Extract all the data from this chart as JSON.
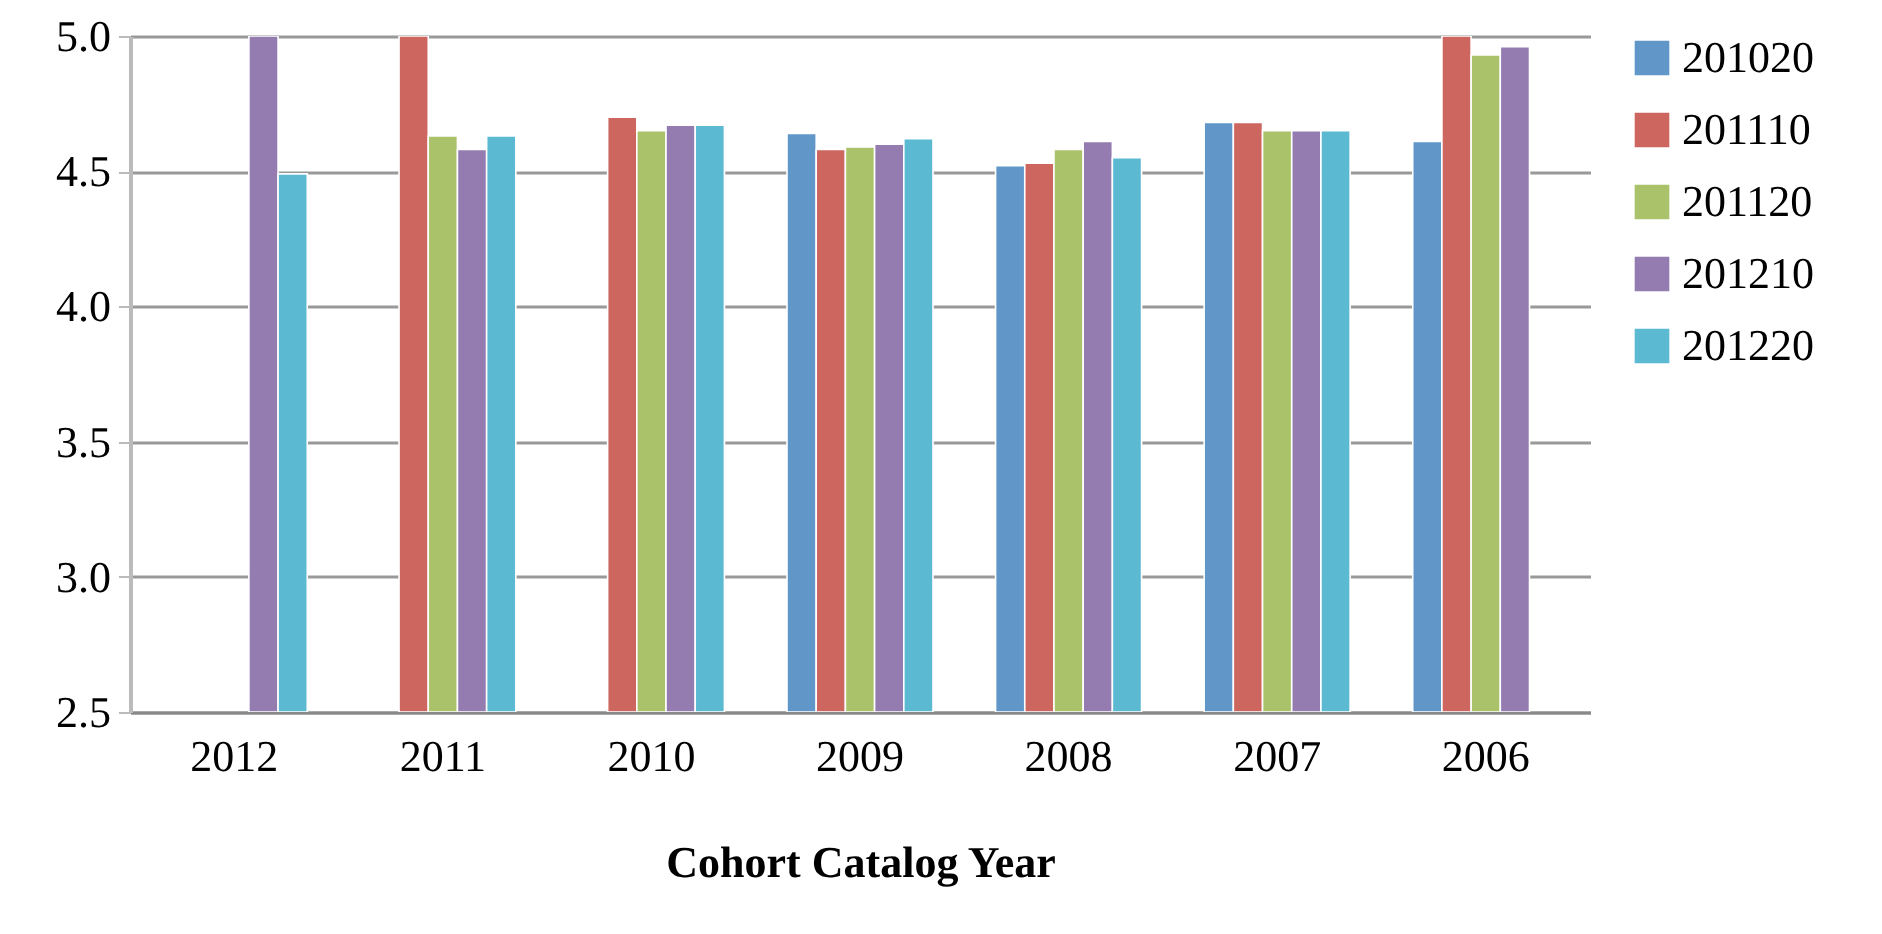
{
  "chart_data": {
    "type": "bar",
    "xlabel": "Cohort Catalog Year",
    "categories": [
      "2012",
      "2011",
      "2010",
      "2009",
      "2008",
      "2007",
      "2006"
    ],
    "series": [
      {
        "name": "201020",
        "color": "#6096c8",
        "values": [
          null,
          null,
          null,
          4.64,
          4.52,
          4.68,
          4.61
        ]
      },
      {
        "name": "201110",
        "color": "#cd665f",
        "values": [
          null,
          5.0,
          4.7,
          4.58,
          4.53,
          4.68,
          5.0
        ]
      },
      {
        "name": "201120",
        "color": "#aac36b",
        "values": [
          null,
          4.63,
          4.65,
          4.59,
          4.58,
          4.65,
          4.93
        ]
      },
      {
        "name": "201210",
        "color": "#947cb0",
        "values": [
          5.0,
          4.58,
          4.67,
          4.6,
          4.61,
          4.65,
          4.96
        ]
      },
      {
        "name": "201220",
        "color": "#5bb9d2",
        "values": [
          4.49,
          4.63,
          4.67,
          4.62,
          4.55,
          4.65,
          null
        ]
      }
    ],
    "ylim": [
      2.5,
      5.0
    ],
    "yticks": [
      2.5,
      {
        "value": 3,
        "label": "3.0"
      },
      3.5,
      {
        "value": 4,
        "label": "4.0"
      },
      4.5,
      {
        "value": 5,
        "label": "5.0"
      }
    ],
    "grid": "y",
    "legend": "right"
  }
}
